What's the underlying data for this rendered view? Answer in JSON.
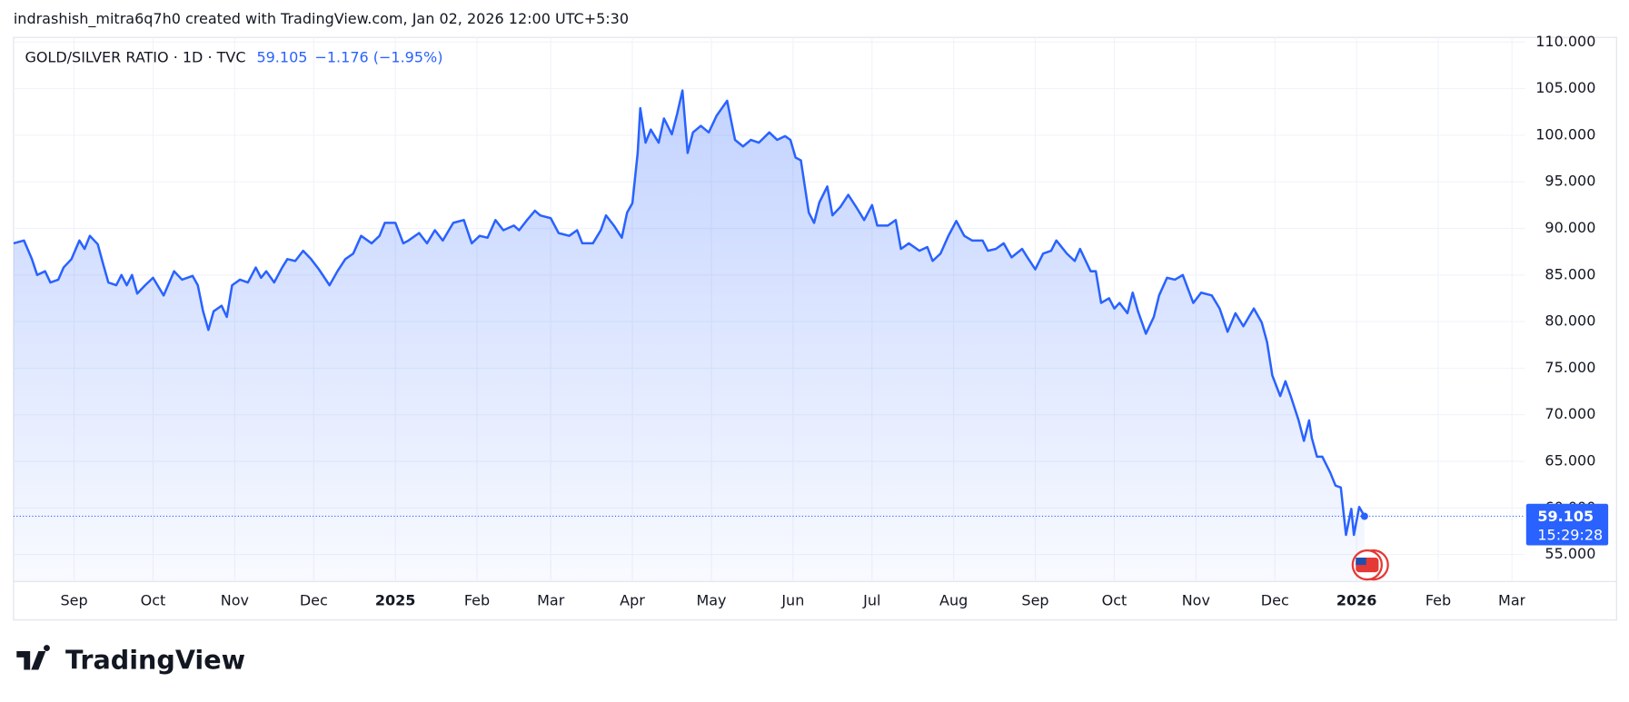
{
  "header": {
    "attribution": "indrashish_mitra6q7h0 created with TradingView.com, Jan 02, 2026 12:00 UTC+5:30"
  },
  "footer": {
    "logo": "TradingView"
  },
  "chart_data": {
    "type": "line",
    "legend": {
      "change": "−1.176 (−1.95%)",
      "countdown": "15:29:28"
    },
    "series": [
      {
        "name": "GOLD/SILVER RATIO · 1D · TVC",
        "color": "#2962ff",
        "x": [
          -23,
          -19,
          -16,
          -14,
          -11,
          -9,
          -6,
          -4,
          -1,
          2,
          4,
          6,
          9,
          11,
          13,
          16,
          18,
          20,
          22,
          24,
          27,
          30,
          34,
          38,
          41,
          45,
          47,
          49,
          51,
          53,
          56,
          58,
          60,
          63,
          66,
          69,
          71,
          73,
          76,
          79,
          81,
          84,
          87,
          90,
          93,
          97,
          100,
          103,
          106,
          109,
          113,
          116,
          118,
          122,
          125,
          127,
          131,
          134,
          137,
          140,
          144,
          148,
          151,
          154,
          157,
          160,
          163,
          167,
          169,
          172,
          175,
          177,
          181,
          184,
          188,
          191,
          193,
          197,
          200,
          202,
          205,
          208,
          210,
          212,
          214,
          215,
          217,
          219,
          222,
          224,
          227,
          229,
          231,
          233,
          235,
          238,
          241,
          244,
          248,
          251,
          254,
          257,
          260,
          264,
          267,
          270,
          272,
          274,
          276,
          279,
          281,
          283,
          286,
          288,
          291,
          294,
          297,
          300,
          303,
          305,
          309,
          312,
          314,
          317,
          321,
          324,
          326,
          329,
          332,
          335,
          338,
          341,
          345,
          347,
          350,
          353,
          356,
          360,
          362,
          365,
          368,
          371,
          373,
          377,
          380,
          382,
          386,
          388,
          390,
          393,
          395,
          397,
          400,
          402,
          404,
          407,
          410,
          412,
          415,
          418,
          421,
          425,
          428,
          432,
          435,
          438,
          441,
          444,
          448,
          451,
          453,
          455,
          458,
          460,
          462,
          465,
          467,
          469,
          470,
          472,
          474,
          477,
          479,
          481,
          483,
          485,
          486,
          488,
          490
        ],
        "values": [
          88.4,
          88.7,
          86.7,
          85.0,
          85.4,
          84.2,
          84.5,
          85.8,
          86.7,
          88.7,
          87.8,
          89.2,
          88.3,
          86.2,
          84.2,
          83.9,
          85.0,
          83.9,
          85.0,
          83.0,
          83.9,
          84.7,
          82.8,
          85.4,
          84.5,
          84.9,
          83.9,
          81.1,
          79.1,
          81.1,
          81.7,
          80.5,
          83.9,
          84.5,
          84.2,
          85.8,
          84.7,
          85.4,
          84.2,
          85.8,
          86.7,
          86.5,
          87.6,
          86.7,
          85.6,
          83.9,
          85.4,
          86.7,
          87.3,
          89.2,
          88.4,
          89.2,
          90.6,
          90.6,
          88.4,
          88.7,
          89.5,
          88.4,
          89.8,
          88.7,
          90.6,
          90.9,
          88.4,
          89.2,
          89.0,
          90.9,
          89.8,
          90.3,
          89.8,
          90.9,
          91.9,
          91.4,
          91.1,
          89.5,
          89.2,
          89.8,
          88.4,
          88.4,
          89.8,
          91.4,
          90.3,
          89.0,
          91.7,
          92.7,
          98.1,
          102.9,
          99.2,
          100.6,
          99.2,
          101.8,
          100.1,
          102.3,
          104.8,
          98.1,
          100.3,
          101.0,
          100.3,
          102.1,
          103.7,
          99.5,
          98.8,
          99.5,
          99.2,
          100.3,
          99.5,
          99.9,
          99.5,
          97.6,
          97.3,
          91.7,
          90.6,
          92.8,
          94.5,
          91.4,
          92.3,
          93.6,
          92.3,
          90.9,
          92.5,
          90.3,
          90.3,
          90.9,
          87.8,
          88.4,
          87.6,
          88.0,
          86.5,
          87.3,
          89.2,
          90.8,
          89.2,
          88.7,
          88.7,
          87.6,
          87.8,
          88.4,
          86.9,
          87.8,
          86.9,
          85.6,
          87.3,
          87.6,
          88.7,
          87.3,
          86.5,
          87.8,
          85.4,
          85.4,
          82.0,
          82.5,
          81.4,
          82.0,
          80.9,
          83.1,
          81.1,
          78.7,
          80.5,
          82.8,
          84.7,
          84.5,
          85.0,
          82.0,
          83.1,
          82.8,
          81.4,
          78.9,
          80.9,
          79.5,
          81.4,
          79.9,
          77.8,
          74.2,
          72.0,
          73.6,
          72.0,
          69.4,
          67.2,
          69.4,
          67.5,
          65.5,
          65.5,
          63.8,
          62.4,
          62.2,
          57.1,
          59.9,
          57.1,
          60.1,
          59.105
        ]
      }
    ],
    "xlim": [
      -23,
      551
    ],
    "xticks": [
      {
        "value": 0,
        "label": "Sep"
      },
      {
        "value": 30,
        "label": "Oct"
      },
      {
        "value": 61,
        "label": "Nov"
      },
      {
        "value": 91,
        "label": "Dec"
      },
      {
        "value": 122,
        "label": "2025"
      },
      {
        "value": 153,
        "label": "Feb"
      },
      {
        "value": 181,
        "label": "Mar"
      },
      {
        "value": 212,
        "label": "Apr"
      },
      {
        "value": 242,
        "label": "May"
      },
      {
        "value": 273,
        "label": "Jun"
      },
      {
        "value": 303,
        "label": "Jul"
      },
      {
        "value": 334,
        "label": "Aug"
      },
      {
        "value": 365,
        "label": "Sep"
      },
      {
        "value": 395,
        "label": "Oct"
      },
      {
        "value": 426,
        "label": "Nov"
      },
      {
        "value": 456,
        "label": "Dec"
      },
      {
        "value": 487,
        "label": "2026"
      },
      {
        "value": 518,
        "label": "Feb"
      },
      {
        "value": 546,
        "label": "Mar"
      }
    ],
    "ylim": [
      52.1,
      110.5
    ],
    "yticks": [
      {
        "value": 55,
        "label": "55.000"
      },
      {
        "value": 60,
        "label": "60.000"
      },
      {
        "value": 65,
        "label": "65.000"
      },
      {
        "value": 70,
        "label": "70.000"
      },
      {
        "value": 75,
        "label": "75.000"
      },
      {
        "value": 80,
        "label": "80.000"
      },
      {
        "value": 85,
        "label": "85.000"
      },
      {
        "value": 90,
        "label": "90.000"
      },
      {
        "value": 95,
        "label": "95.000"
      },
      {
        "value": 100,
        "label": "100.000"
      },
      {
        "value": 105,
        "label": "105.000"
      },
      {
        "value": 110,
        "label": "110.000"
      }
    ],
    "grid": true
  }
}
